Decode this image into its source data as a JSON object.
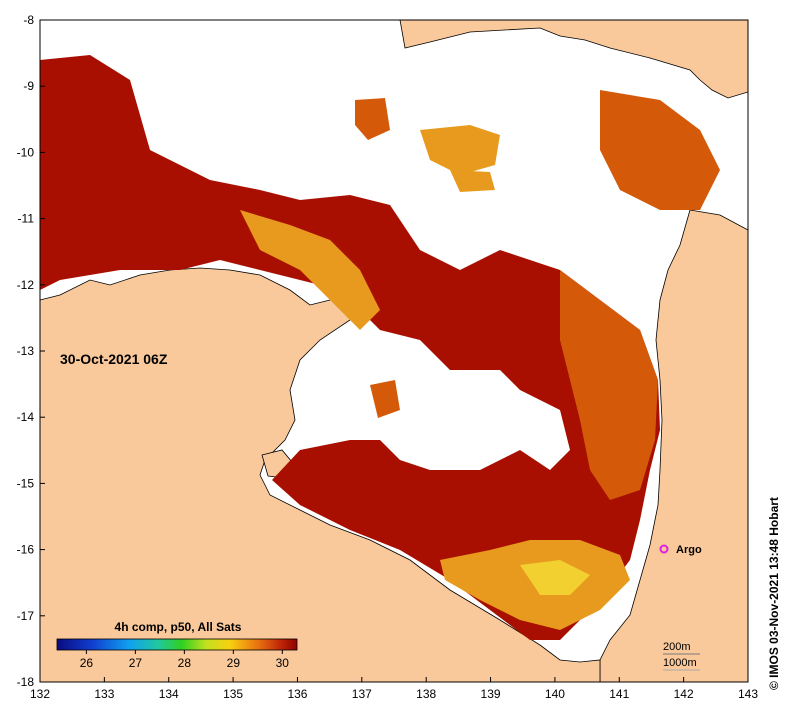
{
  "map": {
    "date_label": "30-Oct-2021 06Z",
    "credit": "© IMOS 03-Nov-2021 13:48 Hobart",
    "argo_label": "Argo",
    "depth_contours": [
      "200m",
      "1000m"
    ],
    "lon_ticks": [
      "132",
      "133",
      "134",
      "135",
      "136",
      "137",
      "138",
      "139",
      "140",
      "141",
      "142",
      "143"
    ],
    "lat_ticks": [
      "-8",
      "-9",
      "-10",
      "-11",
      "-12",
      "-13",
      "-14",
      "-15",
      "-16",
      "-17",
      "-18"
    ],
    "colorbar": {
      "title": "4h comp, p50, All Sats",
      "ticks": [
        "26",
        "27",
        "28",
        "29",
        "30"
      ],
      "min": 25.4,
      "max": 30.3
    },
    "colors": {
      "land": "#f9c99b",
      "no_data": "#ffffff",
      "sst_high": "#a80f00",
      "sst_warm": "#d45a0a",
      "sst_mid": "#e89a1e",
      "sst_low": "#f2d030",
      "argo": "#e020e0"
    }
  }
}
